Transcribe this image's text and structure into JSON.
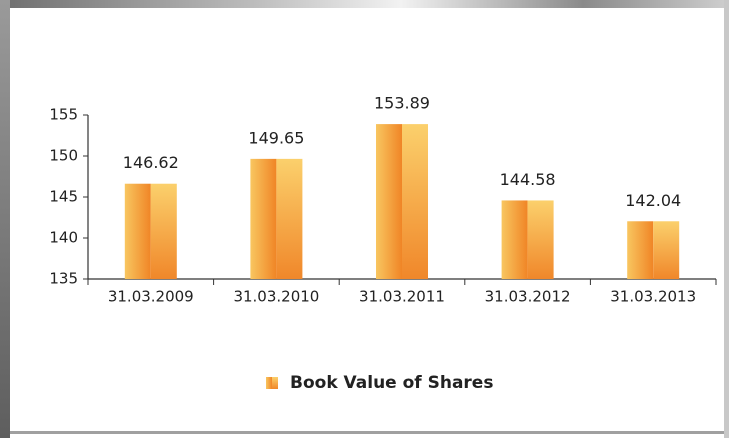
{
  "chart_data": {
    "type": "bar",
    "categories": [
      "31.03.2009",
      "31.03.2010",
      "31.03.2011",
      "31.03.2012",
      "31.03.2013"
    ],
    "series": [
      {
        "name": "Book Value of Shares",
        "color": "#f39a35",
        "values": [
          146.62,
          149.65,
          153.89,
          144.58,
          142.04
        ]
      }
    ],
    "ylim": [
      135,
      155
    ],
    "yticks": [
      135,
      140,
      145,
      150,
      155
    ],
    "grid": false,
    "data_labels": true,
    "legend": "bottom"
  }
}
